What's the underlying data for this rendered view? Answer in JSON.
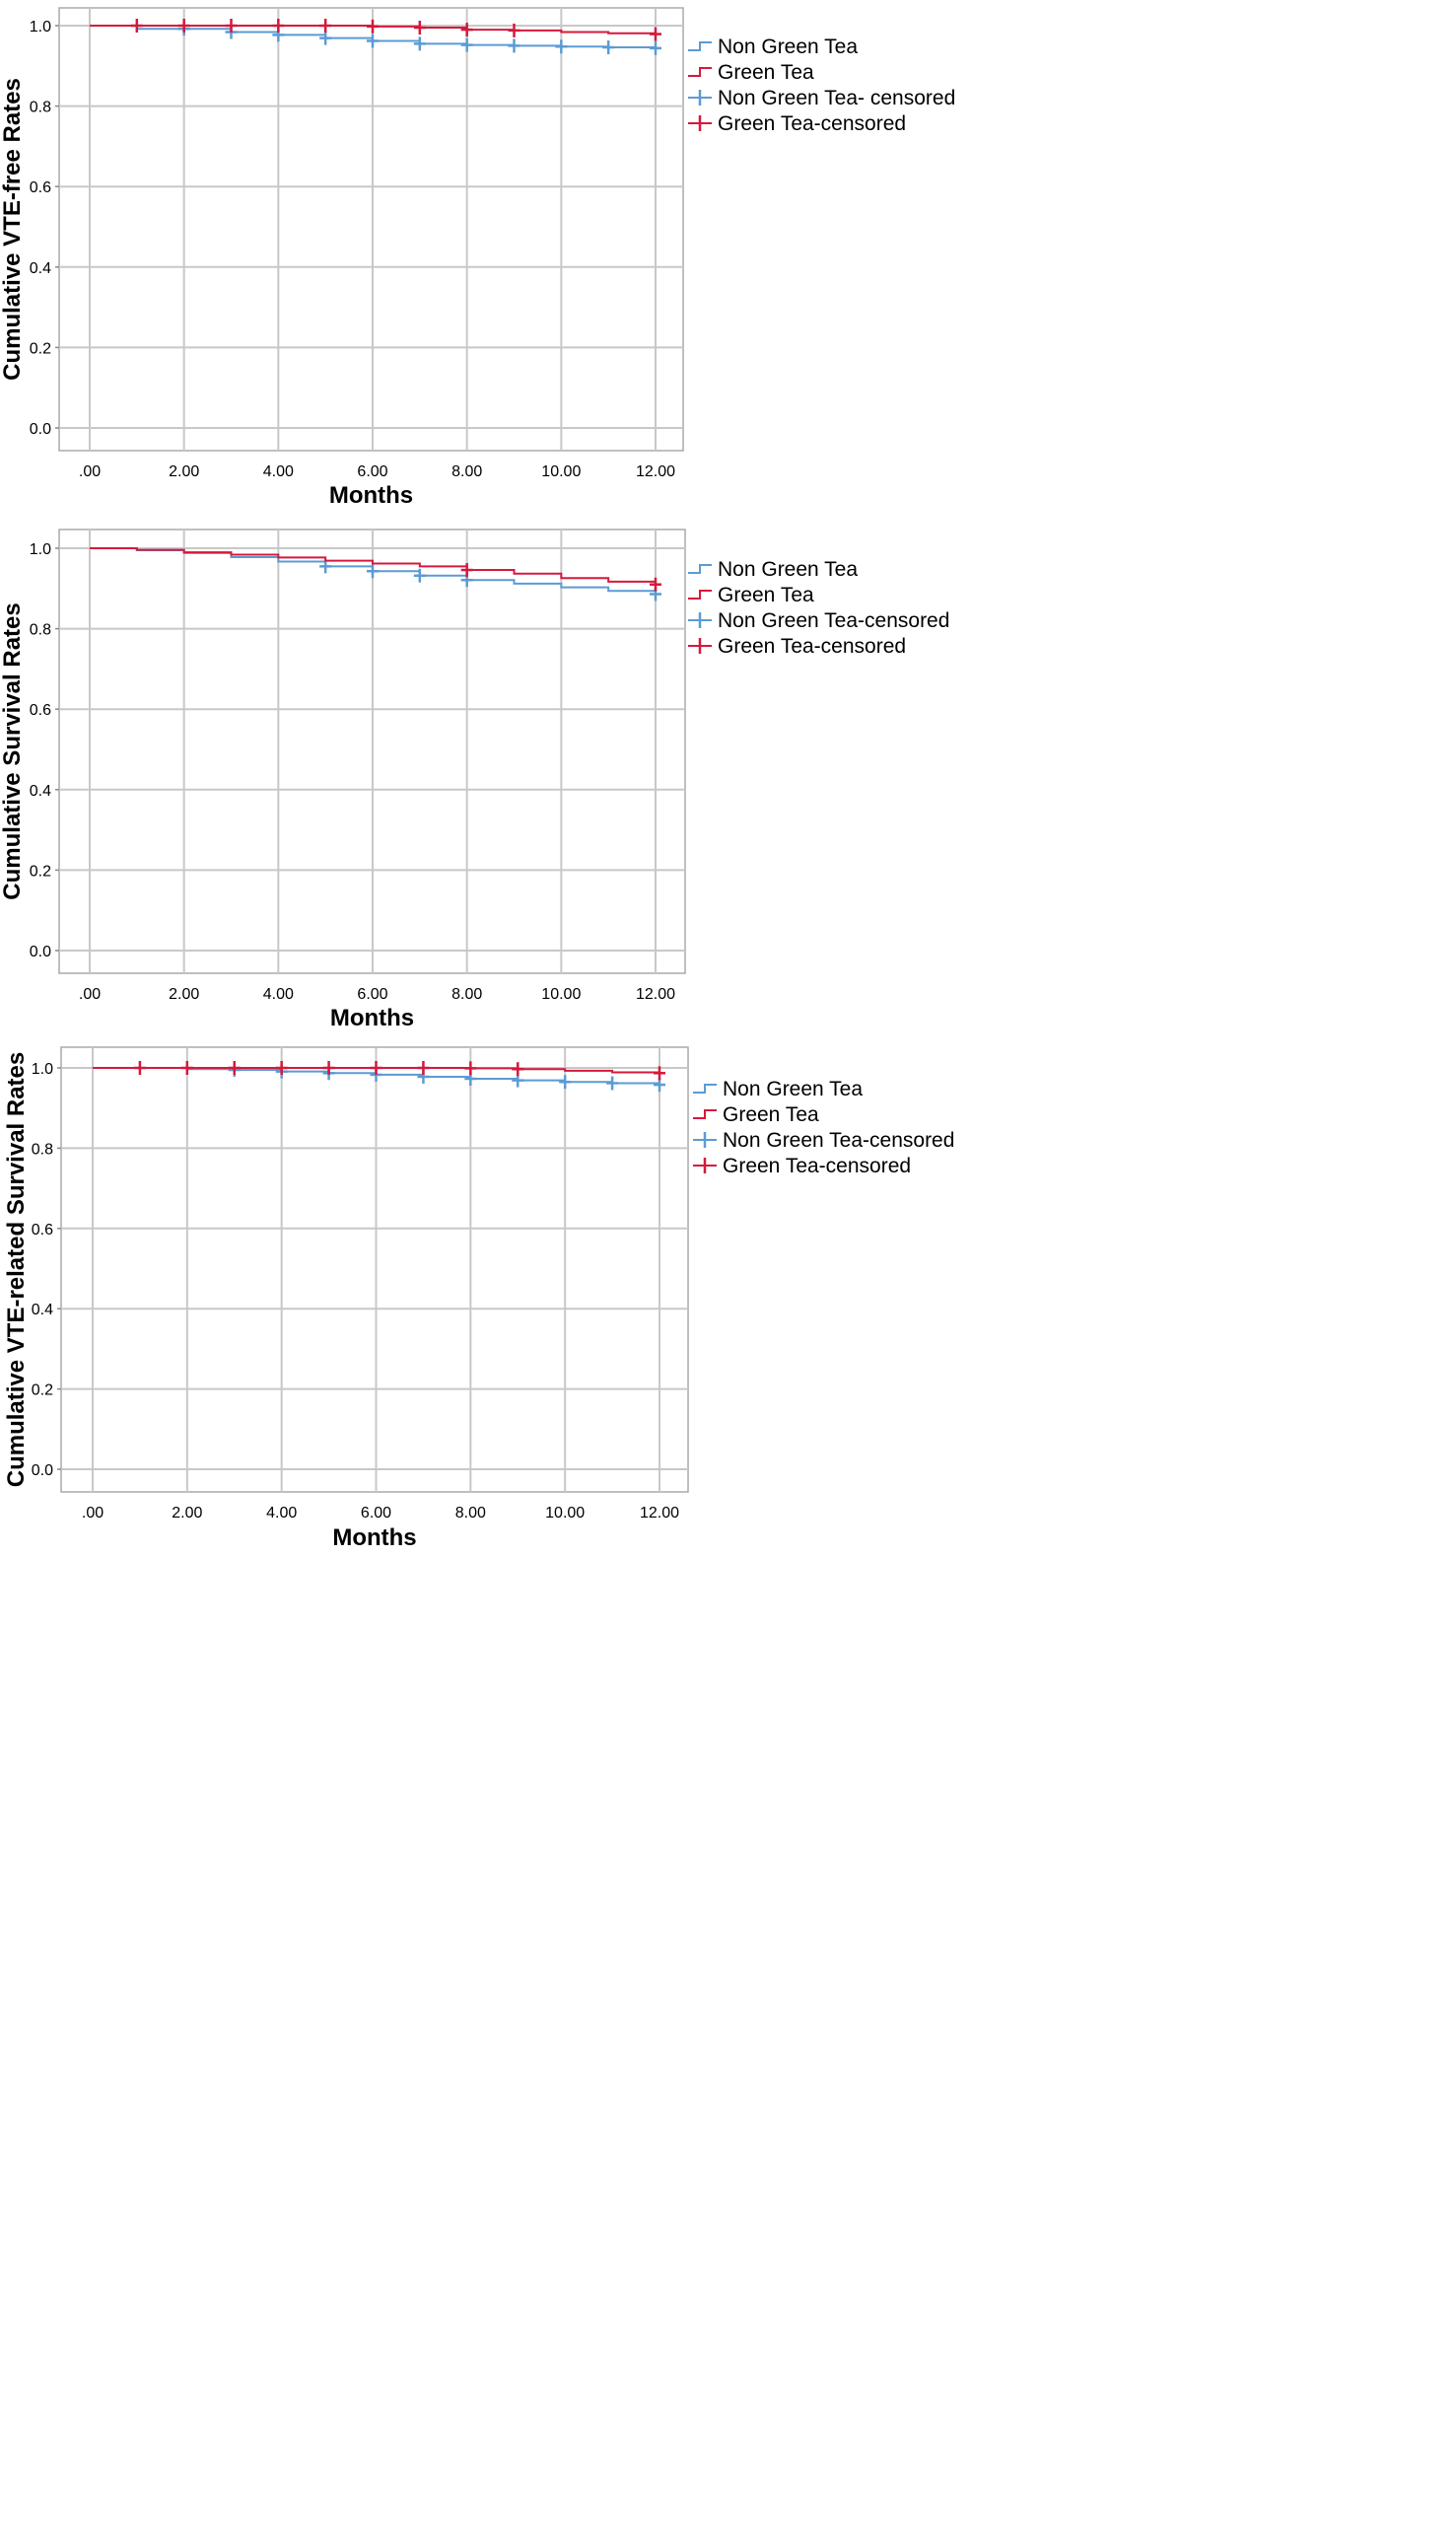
{
  "chart_data": [
    {
      "type": "line",
      "subtype": "kaplan-meier",
      "xlabel": "Months",
      "ylabel": "Cumulative VTE-free Rates",
      "xlim": [
        0,
        12
      ],
      "ylim": [
        0,
        1.0
      ],
      "x_ticks": [
        ".00",
        "2.00",
        "4.00",
        "6.00",
        "8.00",
        "10.00",
        "12.00"
      ],
      "y_ticks": [
        "0.0",
        "0.2",
        "0.4",
        "0.6",
        "0.8",
        "1.0"
      ],
      "grid": true,
      "legend_position": "right",
      "legend": [
        "Non Green Tea",
        "Green Tea",
        "Non Green Tea- censored",
        "Green Tea-censored"
      ],
      "colors": {
        "non_green_tea": "#5b9bd5",
        "green_tea": "#d6183c"
      },
      "series": [
        {
          "name": "Non Green Tea",
          "steps": [
            [
              0,
              1.0
            ],
            [
              1,
              0.992
            ],
            [
              3,
              0.984
            ],
            [
              4,
              0.977
            ],
            [
              5,
              0.969
            ],
            [
              6,
              0.962
            ],
            [
              7,
              0.955
            ],
            [
              8,
              0.952
            ],
            [
              9,
              0.95
            ],
            [
              10,
              0.948
            ],
            [
              11,
              0.946
            ],
            [
              12,
              0.944
            ]
          ],
          "censored": [
            [
              2,
              0.992
            ],
            [
              3,
              0.984
            ],
            [
              4,
              0.977
            ],
            [
              5,
              0.969
            ],
            [
              6,
              0.962
            ],
            [
              7,
              0.955
            ],
            [
              8,
              0.952
            ],
            [
              9,
              0.95
            ],
            [
              10,
              0.948
            ],
            [
              11,
              0.946
            ],
            [
              12,
              0.944
            ]
          ]
        },
        {
          "name": "Green Tea",
          "steps": [
            [
              0,
              1.0
            ],
            [
              6,
              0.998
            ],
            [
              7,
              0.995
            ],
            [
              8,
              0.99
            ],
            [
              9,
              0.988
            ],
            [
              10,
              0.984
            ],
            [
              11,
              0.981
            ],
            [
              12,
              0.979
            ]
          ],
          "censored": [
            [
              1,
              1.0
            ],
            [
              2,
              1.0
            ],
            [
              3,
              1.0
            ],
            [
              4,
              1.0
            ],
            [
              5,
              1.0
            ],
            [
              6,
              0.998
            ],
            [
              7,
              0.995
            ],
            [
              8,
              0.99
            ],
            [
              9,
              0.988
            ],
            [
              12,
              0.979
            ]
          ]
        }
      ]
    },
    {
      "type": "line",
      "subtype": "kaplan-meier",
      "xlabel": "Months",
      "ylabel": "Cumulative Survival Rates",
      "xlim": [
        0,
        12
      ],
      "ylim": [
        0,
        1.0
      ],
      "x_ticks": [
        ".00",
        "2.00",
        "4.00",
        "6.00",
        "8.00",
        "10.00",
        "12.00"
      ],
      "y_ticks": [
        "0.0",
        "0.2",
        "0.4",
        "0.6",
        "0.8",
        "1.0"
      ],
      "grid": true,
      "legend_position": "right",
      "legend": [
        "Non Green Tea",
        "Green Tea",
        "Non Green Tea-censored",
        "Green Tea-censored"
      ],
      "colors": {
        "non_green_tea": "#5b9bd5",
        "green_tea": "#d6183c"
      },
      "series": [
        {
          "name": "Non Green Tea",
          "steps": [
            [
              0,
              1.0
            ],
            [
              1,
              0.995
            ],
            [
              2,
              0.988
            ],
            [
              3,
              0.978
            ],
            [
              4,
              0.967
            ],
            [
              5,
              0.955
            ],
            [
              6,
              0.943
            ],
            [
              7,
              0.932
            ],
            [
              8,
              0.921
            ],
            [
              9,
              0.912
            ],
            [
              10,
              0.903
            ],
            [
              11,
              0.894
            ],
            [
              12,
              0.886
            ]
          ],
          "censored": [
            [
              5,
              0.955
            ],
            [
              6,
              0.943
            ],
            [
              7,
              0.932
            ],
            [
              8,
              0.921
            ],
            [
              12,
              0.886
            ]
          ]
        },
        {
          "name": "Green Tea",
          "steps": [
            [
              0,
              1.0
            ],
            [
              1,
              0.996
            ],
            [
              2,
              0.99
            ],
            [
              3,
              0.984
            ],
            [
              4,
              0.977
            ],
            [
              5,
              0.969
            ],
            [
              6,
              0.962
            ],
            [
              7,
              0.955
            ],
            [
              8,
              0.946
            ],
            [
              9,
              0.937
            ],
            [
              10,
              0.926
            ],
            [
              11,
              0.917
            ],
            [
              12,
              0.91
            ]
          ],
          "censored": [
            [
              8,
              0.946
            ],
            [
              12,
              0.91
            ]
          ]
        }
      ]
    },
    {
      "type": "line",
      "subtype": "kaplan-meier",
      "xlabel": "Months",
      "ylabel": "Cumulative VTE-related Survival Rates",
      "xlim": [
        0,
        12
      ],
      "ylim": [
        0,
        1.0
      ],
      "x_ticks": [
        ".00",
        "2.00",
        "4.00",
        "6.00",
        "8.00",
        "10.00",
        "12.00"
      ],
      "y_ticks": [
        "0.0",
        "0.2",
        "0.4",
        "0.6",
        "0.8",
        "1.0"
      ],
      "grid": true,
      "legend_position": "right",
      "legend": [
        "Non Green Tea",
        "Green Tea",
        "Non Green Tea-censored",
        "Green Tea-censored"
      ],
      "colors": {
        "non_green_tea": "#5b9bd5",
        "green_tea": "#d6183c"
      },
      "series": [
        {
          "name": "Non Green Tea",
          "steps": [
            [
              0,
              1.0
            ],
            [
              2,
              0.997
            ],
            [
              3,
              0.995
            ],
            [
              4,
              0.991
            ],
            [
              5,
              0.987
            ],
            [
              6,
              0.983
            ],
            [
              7,
              0.978
            ],
            [
              8,
              0.973
            ],
            [
              9,
              0.969
            ],
            [
              10,
              0.965
            ],
            [
              11,
              0.962
            ],
            [
              12,
              0.958
            ]
          ],
          "censored": [
            [
              3,
              0.995
            ],
            [
              4,
              0.991
            ],
            [
              5,
              0.987
            ],
            [
              6,
              0.983
            ],
            [
              7,
              0.978
            ],
            [
              8,
              0.973
            ],
            [
              9,
              0.969
            ],
            [
              10,
              0.965
            ],
            [
              11,
              0.962
            ],
            [
              12,
              0.958
            ]
          ]
        },
        {
          "name": "Green Tea",
          "steps": [
            [
              0,
              1.0
            ],
            [
              8,
              0.999
            ],
            [
              9,
              0.997
            ],
            [
              10,
              0.993
            ],
            [
              11,
              0.989
            ],
            [
              12,
              0.987
            ]
          ],
          "censored": [
            [
              1,
              1.0
            ],
            [
              2,
              1.0
            ],
            [
              3,
              1.0
            ],
            [
              4,
              1.0
            ],
            [
              5,
              1.0
            ],
            [
              6,
              1.0
            ],
            [
              7,
              1.0
            ],
            [
              8,
              0.999
            ],
            [
              9,
              0.997
            ],
            [
              12,
              0.987
            ]
          ]
        }
      ]
    }
  ]
}
